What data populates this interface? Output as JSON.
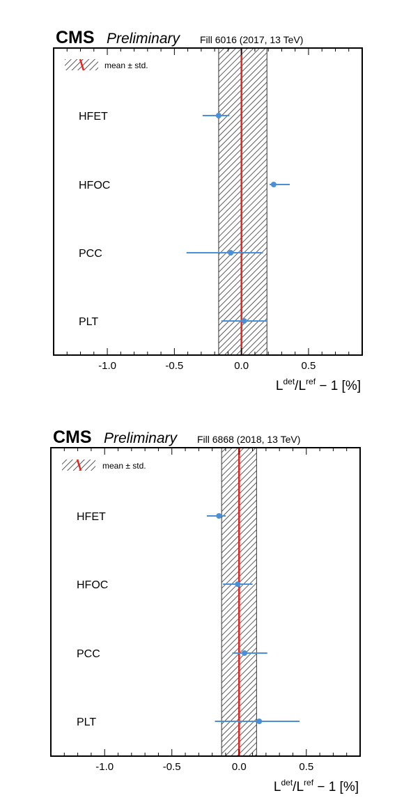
{
  "chart_data": [
    {
      "type": "scatter",
      "header": {
        "experiment": "CMS",
        "status": "Preliminary",
        "fill_info": "Fill 6016 (2017, 13 TeV)"
      },
      "xlabel": {
        "base1": "L",
        "sup1": "det",
        "mid": "/L",
        "sup2": "ref",
        "tail": " − 1  [%]"
      },
      "xlim": [
        -1.4,
        0.9
      ],
      "xticks": [
        -1.0,
        -0.5,
        0.0,
        0.5
      ],
      "xtick_labels": [
        "-1.0",
        "-0.5",
        "0.0",
        "0.5"
      ],
      "legend": {
        "label": "mean ± std.",
        "position": "top-left"
      },
      "reference_line": {
        "value": 0.0,
        "color": "#e8231e"
      },
      "band": {
        "low": -0.17,
        "high": 0.19
      },
      "points": [
        {
          "label": "HFET",
          "value": -0.17,
          "err_low": 0.12,
          "err_high": 0.08
        },
        {
          "label": "HFOC",
          "value": 0.24,
          "err_low": 0.03,
          "err_high": 0.12
        },
        {
          "label": "PCC",
          "value": -0.08,
          "err_low": 0.33,
          "err_high": 0.24
        },
        {
          "label": "PLT",
          "value": 0.02,
          "err_low": 0.17,
          "err_high": 0.17
        }
      ],
      "marker_color": "#4a90d9"
    },
    {
      "type": "scatter",
      "header": {
        "experiment": "CMS",
        "status": "Preliminary",
        "fill_info": "Fill 6868 (2018, 13 TeV)"
      },
      "xlabel": {
        "base1": "L",
        "sup1": "det",
        "mid": "/L",
        "sup2": "ref",
        "tail": " − 1  [%]"
      },
      "xlim": [
        -1.4,
        0.9
      ],
      "xticks": [
        -1.0,
        -0.5,
        0.0,
        0.5
      ],
      "xtick_labels": [
        "-1.0",
        "-0.5",
        "0.0",
        "0.5"
      ],
      "legend": {
        "label": "mean ± std.",
        "position": "top-left"
      },
      "reference_line": {
        "value": 0.0,
        "color": "#e8231e"
      },
      "band": {
        "low": -0.13,
        "high": 0.13
      },
      "points": [
        {
          "label": "HFET",
          "value": -0.15,
          "err_low": 0.09,
          "err_high": 0.05
        },
        {
          "label": "HFOC",
          "value": -0.01,
          "err_low": 0.11,
          "err_high": 0.11
        },
        {
          "label": "PCC",
          "value": 0.04,
          "err_low": 0.09,
          "err_high": 0.17
        },
        {
          "label": "PLT",
          "value": 0.15,
          "err_low": 0.33,
          "err_high": 0.3
        }
      ],
      "marker_color": "#4a90d9"
    }
  ]
}
